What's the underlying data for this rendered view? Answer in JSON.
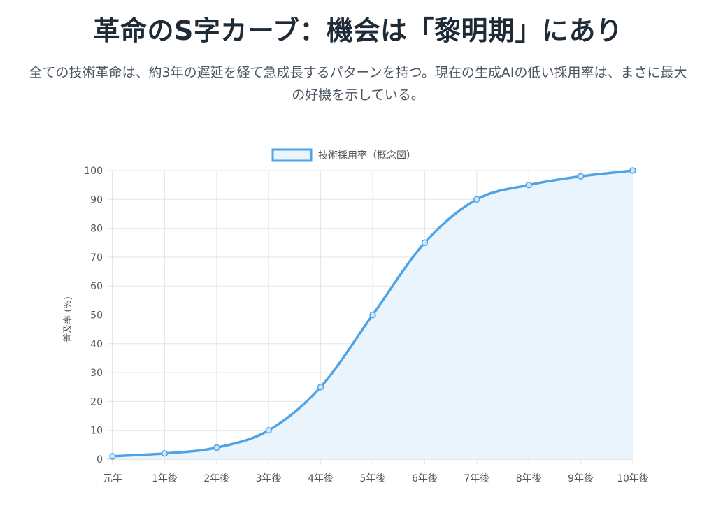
{
  "header": {
    "title": "革命のS字カーブ：機会は「黎明期」にあり",
    "subtitle": "全ての技術革命は、約3年の遅延を経て急成長するパターンを持つ。現在の生成AIの低い採用率は、まさに最大の好機を示している。"
  },
  "colors": {
    "line": "#4da3e6",
    "fill": "#eaf4fd",
    "point_fill": "#cfe4f7",
    "grid": "#e5e5e5",
    "axis": "#cccccc"
  },
  "chart_data": {
    "type": "line",
    "title": "",
    "xlabel": "",
    "ylabel": "普及率 (%)",
    "categories": [
      "元年",
      "1年後",
      "2年後",
      "3年後",
      "4年後",
      "5年後",
      "6年後",
      "7年後",
      "8年後",
      "9年後",
      "10年後"
    ],
    "series": [
      {
        "name": "技術採用率（概念図）",
        "values": [
          1,
          2,
          4,
          10,
          25,
          50,
          75,
          90,
          95,
          98,
          100
        ]
      }
    ],
    "ylim": [
      0,
      100
    ],
    "yticks": [
      "0",
      "10",
      "20",
      "30",
      "40",
      "50",
      "60",
      "70",
      "80",
      "90",
      "100"
    ],
    "grid": true,
    "filled": true,
    "legend_position": "top-center"
  }
}
